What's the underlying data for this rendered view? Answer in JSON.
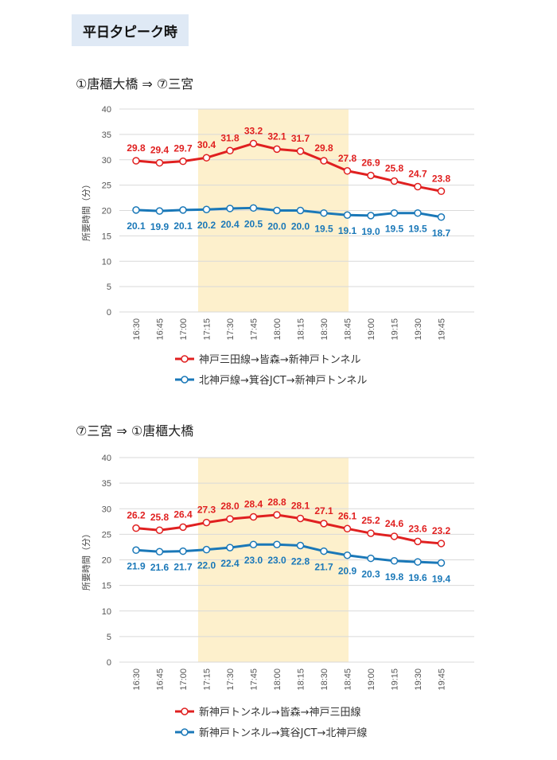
{
  "header": {
    "badge": "平日夕ピーク時"
  },
  "chart_data": [
    {
      "type": "line",
      "title": "①唐櫃大橋 ⇒ ⑦三宮",
      "ylabel": "所要時間（分）",
      "ylim": [
        0,
        40
      ],
      "yticks": [
        0,
        5,
        10,
        15,
        20,
        25,
        30,
        35,
        40
      ],
      "categories": [
        "16:30",
        "16:45",
        "17:00",
        "17:15",
        "17:30",
        "17:45",
        "18:00",
        "18:15",
        "18:30",
        "18:45",
        "19:00",
        "19:15",
        "19:30",
        "19:45"
      ],
      "highlight_range": [
        "17:15",
        "18:30"
      ],
      "highlight_color": "#fdf0cc",
      "grid": true,
      "legend_position": "bottom",
      "series": [
        {
          "name": "神戸三田線→皆森→新神戸トンネル",
          "color": "#e02020",
          "values": [
            29.8,
            29.4,
            29.7,
            30.4,
            31.8,
            33.2,
            32.1,
            31.7,
            29.8,
            27.8,
            26.9,
            25.8,
            24.7,
            23.8
          ]
        },
        {
          "name": "北神戸線→箕谷JCT→新神戸トンネル",
          "color": "#1a78b8",
          "values": [
            20.1,
            19.9,
            20.1,
            20.2,
            20.4,
            20.5,
            20.0,
            20.0,
            19.5,
            19.1,
            19.0,
            19.5,
            19.5,
            18.7
          ]
        }
      ]
    },
    {
      "type": "line",
      "title": "⑦三宮 ⇒ ①唐櫃大橋",
      "ylabel": "所要時間（分）",
      "ylim": [
        0,
        40
      ],
      "yticks": [
        0,
        5,
        10,
        15,
        20,
        25,
        30,
        35,
        40
      ],
      "categories": [
        "16:30",
        "16:45",
        "17:00",
        "17:15",
        "17:30",
        "17:45",
        "18:00",
        "18:15",
        "18:30",
        "18:45",
        "19:00",
        "19:15",
        "19:30",
        "19:45"
      ],
      "highlight_range": [
        "17:15",
        "18:30"
      ],
      "highlight_color": "#fdf0cc",
      "grid": true,
      "legend_position": "bottom",
      "series": [
        {
          "name": "新神戸トンネル→皆森→神戸三田線",
          "color": "#e02020",
          "values": [
            26.2,
            25.8,
            26.4,
            27.3,
            28.0,
            28.4,
            28.8,
            28.1,
            27.1,
            26.1,
            25.2,
            24.6,
            23.6,
            23.2
          ]
        },
        {
          "name": "新神戸トンネル→箕谷JCT→北神戸線",
          "color": "#1a78b8",
          "values": [
            21.9,
            21.6,
            21.7,
            22.0,
            22.4,
            23.0,
            23.0,
            22.8,
            21.7,
            20.9,
            20.3,
            19.8,
            19.6,
            19.4
          ]
        }
      ]
    }
  ]
}
